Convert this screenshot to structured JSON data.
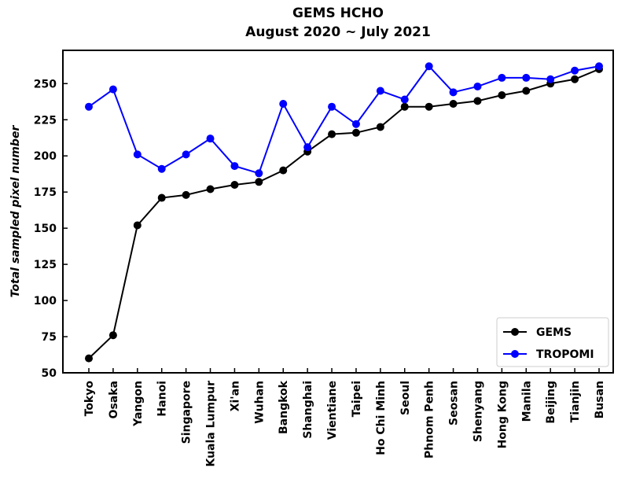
{
  "chart_data": {
    "type": "line",
    "title": "GEMS HCHO",
    "subtitle": "August 2020 ~ July 2021",
    "y_label": "Total sampled pixel number",
    "categories": [
      "Tokyo",
      "Osaka",
      "Yangon",
      "Hanoi",
      "Singapore",
      "Kuala Lumpur",
      "Xi'an",
      "Wuhan",
      "Bangkok",
      "Shanghai",
      "Vientiane",
      "Taipei",
      "Ho Chi Minh",
      "Seoul",
      "Phnom Penh",
      "Seosan",
      "Shenyang",
      "Hong Kong",
      "Manila",
      "Beijing",
      "Tianjin",
      "Busan"
    ],
    "series": [
      {
        "name": "GEMS",
        "color": "#000000",
        "values": [
          60,
          76,
          152,
          171,
          173,
          177,
          180,
          182,
          190,
          203,
          215,
          216,
          220,
          234,
          234,
          236,
          238,
          242,
          245,
          250,
          253,
          260
        ]
      },
      {
        "name": "TROPOMI",
        "color": "#0000ff",
        "values": [
          234,
          246,
          201,
          191,
          201,
          212,
          193,
          188,
          236,
          206,
          234,
          222,
          245,
          239,
          262,
          244,
          248,
          254,
          254,
          253,
          259,
          262
        ]
      }
    ],
    "ylim": [
      50,
      273
    ],
    "yticks": [
      50,
      75,
      100,
      125,
      150,
      175,
      200,
      225,
      250
    ],
    "legend": "lower right"
  }
}
